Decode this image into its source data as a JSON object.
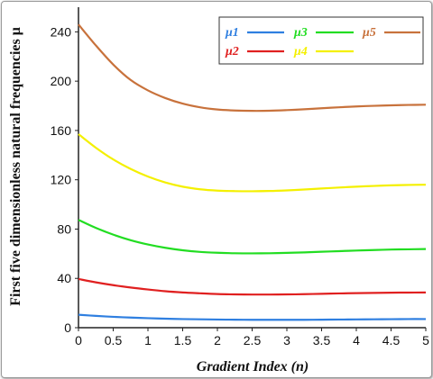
{
  "chart_data": {
    "type": "line",
    "xlabel": "Gradient Index (n)",
    "ylabel": "First five dimensionless natural frequencies μ",
    "xlim": [
      0,
      5
    ],
    "ylim": [
      0,
      260
    ],
    "xticks": [
      "0",
      "0.5",
      "1",
      "1.5",
      "2",
      "2.5",
      "3",
      "3.5",
      "4",
      "4.5",
      "5"
    ],
    "yticks": [
      "0",
      "40",
      "80",
      "120",
      "160",
      "200",
      "240"
    ],
    "grid": false,
    "legend": "top-right",
    "x": [
      0,
      0.25,
      0.5,
      0.75,
      1,
      1.25,
      1.5,
      1.75,
      2,
      2.25,
      2.5,
      2.75,
      3,
      3.25,
      3.5,
      3.75,
      4,
      4.25,
      4.5,
      4.75,
      5
    ],
    "series": [
      {
        "name": "μ1",
        "color": "#2f7fe0",
        "values": [
          10.5,
          9.6,
          8.8,
          8.2,
          7.7,
          7.3,
          7.0,
          6.8,
          6.6,
          6.5,
          6.4,
          6.4,
          6.4,
          6.4,
          6.5,
          6.6,
          6.7,
          6.8,
          6.9,
          7.0,
          7.0
        ]
      },
      {
        "name": "μ2",
        "color": "#e02020",
        "values": [
          39.5,
          36.8,
          34.5,
          32.6,
          31.0,
          29.6,
          28.6,
          27.9,
          27.3,
          27.0,
          26.9,
          26.9,
          27.0,
          27.2,
          27.5,
          27.8,
          28.0,
          28.2,
          28.4,
          28.5,
          28.6
        ]
      },
      {
        "name": "μ3",
        "color": "#22dd22",
        "values": [
          87.5,
          81.0,
          75.5,
          71.0,
          67.5,
          64.8,
          62.8,
          61.5,
          60.8,
          60.4,
          60.3,
          60.4,
          60.7,
          61.1,
          61.6,
          62.1,
          62.6,
          63.0,
          63.4,
          63.6,
          63.8
        ]
      },
      {
        "name": "μ4",
        "color": "#f4f000",
        "values": [
          157,
          146,
          136.5,
          128.8,
          122.6,
          117.8,
          114.4,
          112.3,
          111.2,
          110.8,
          110.7,
          110.9,
          111.4,
          112.1,
          112.9,
          113.7,
          114.4,
          115.0,
          115.5,
          115.8,
          116.0
        ]
      },
      {
        "name": "μ5",
        "color": "#c8723c",
        "values": [
          246,
          229,
          213.5,
          201,
          192.5,
          186.3,
          181.8,
          178.8,
          177.0,
          176.2,
          175.9,
          176.0,
          176.5,
          177.2,
          178.0,
          178.8,
          179.5,
          180.0,
          180.4,
          180.7,
          180.9
        ]
      }
    ]
  }
}
